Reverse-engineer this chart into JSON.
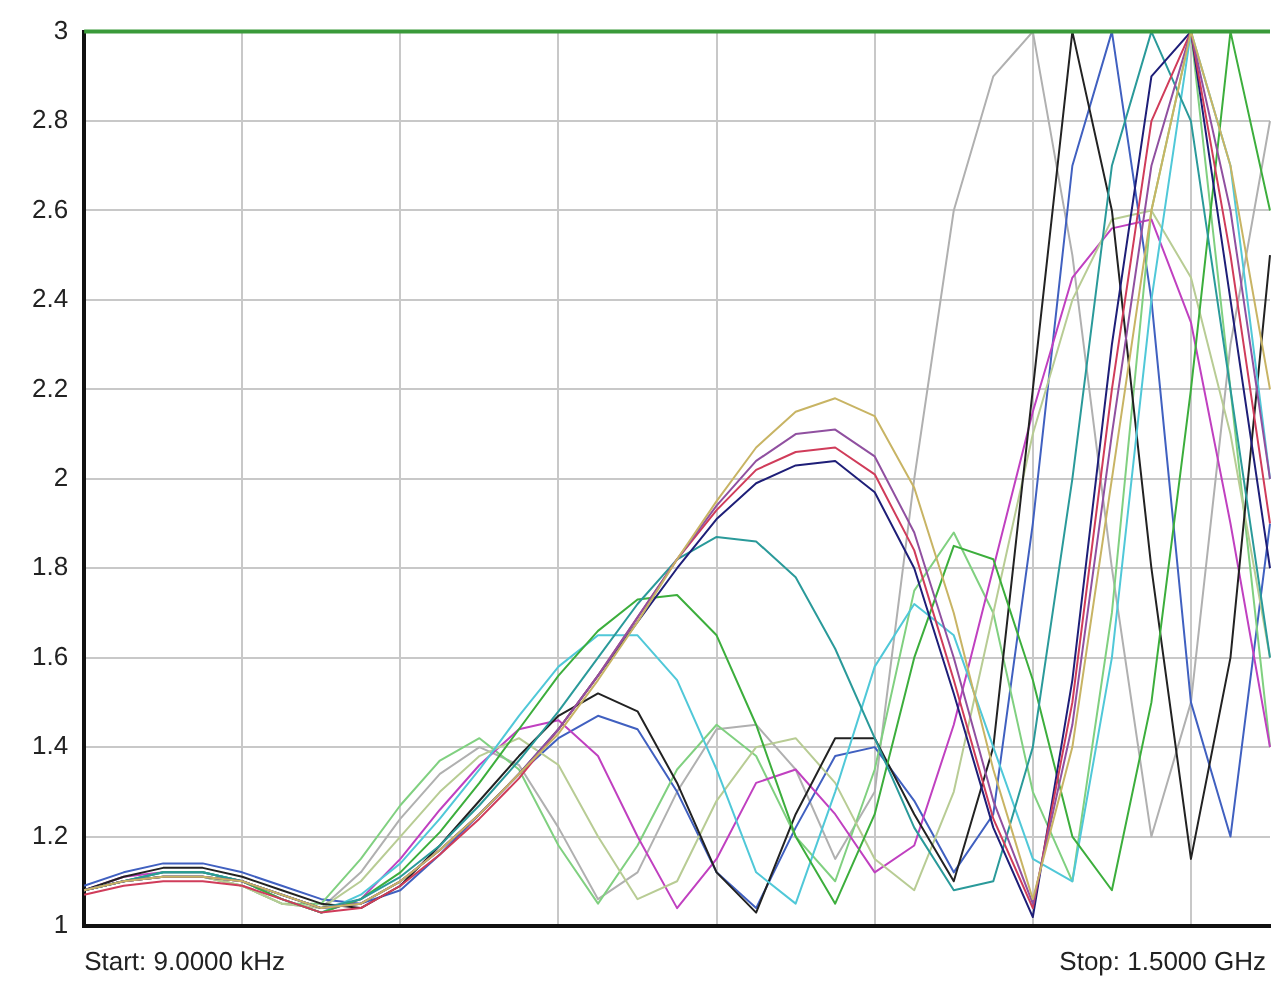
{
  "chart_data": {
    "type": "line",
    "categories": [
      null,
      null,
      null,
      null,
      null,
      null,
      null,
      null,
      null,
      null,
      null,
      null,
      null,
      null,
      null,
      null,
      null,
      null,
      null,
      null,
      null,
      null,
      null,
      null,
      null,
      null,
      null,
      null,
      null,
      null,
      null
    ],
    "ylim": [
      1,
      3
    ],
    "yticks": [
      1,
      1.2,
      1.4,
      1.6,
      1.8,
      2,
      2.2,
      2.4,
      2.6,
      2.8,
      3
    ],
    "grid": true,
    "legend": false,
    "tick_labels": "y",
    "marker": "none",
    "ref_lines": [
      {
        "axis": "y",
        "value": 3,
        "color": "#3a9a3a"
      }
    ],
    "annotations": [
      "Start: 9.0000 kHz",
      "Stop: 1.5000 GHz"
    ],
    "series": [
      {
        "color": "#c8b464",
        "values": [
          1.08,
          1.1,
          1.11,
          1.11,
          1.1,
          1.07,
          1.04,
          1.05,
          1.1,
          1.17,
          1.25,
          1.34,
          1.43,
          1.55,
          1.68,
          1.82,
          1.95,
          2.07,
          2.15,
          2.18,
          2.14,
          1.98,
          1.7,
          1.35,
          1.06,
          1.4,
          2.0,
          2.6,
          3.0,
          2.7,
          2.2
        ]
      },
      {
        "color": "#9050a0",
        "values": [
          1.08,
          1.1,
          1.11,
          1.11,
          1.1,
          1.07,
          1.04,
          1.05,
          1.1,
          1.17,
          1.25,
          1.34,
          1.44,
          1.56,
          1.69,
          1.82,
          1.94,
          2.04,
          2.1,
          2.11,
          2.05,
          1.88,
          1.6,
          1.28,
          1.05,
          1.45,
          2.1,
          2.7,
          3.0,
          2.6,
          2.0
        ]
      },
      {
        "color": "#d03c5a",
        "values": [
          1.07,
          1.09,
          1.1,
          1.1,
          1.09,
          1.06,
          1.03,
          1.04,
          1.09,
          1.16,
          1.24,
          1.33,
          1.44,
          1.56,
          1.69,
          1.82,
          1.93,
          2.02,
          2.06,
          2.07,
          2.01,
          1.84,
          1.55,
          1.24,
          1.04,
          1.5,
          2.2,
          2.8,
          3.0,
          2.5,
          1.9
        ]
      },
      {
        "color": "#1e1e78",
        "values": [
          1.08,
          1.1,
          1.11,
          1.11,
          1.1,
          1.07,
          1.04,
          1.05,
          1.1,
          1.17,
          1.25,
          1.34,
          1.44,
          1.56,
          1.68,
          1.8,
          1.91,
          1.99,
          2.03,
          2.04,
          1.97,
          1.8,
          1.52,
          1.22,
          1.02,
          1.55,
          2.3,
          2.9,
          3.0,
          2.4,
          1.8
        ]
      },
      {
        "color": "#2a9a9a",
        "values": [
          1.08,
          1.1,
          1.12,
          1.12,
          1.1,
          1.07,
          1.04,
          1.06,
          1.11,
          1.18,
          1.27,
          1.37,
          1.48,
          1.6,
          1.72,
          1.82,
          1.87,
          1.86,
          1.78,
          1.62,
          1.42,
          1.22,
          1.08,
          1.1,
          1.4,
          2.0,
          2.7,
          3.0,
          2.8,
          2.2,
          1.6
        ]
      },
      {
        "color": "#3cae3c",
        "values": [
          1.08,
          1.1,
          1.12,
          1.12,
          1.1,
          1.06,
          1.03,
          1.06,
          1.12,
          1.21,
          1.32,
          1.44,
          1.56,
          1.66,
          1.73,
          1.74,
          1.65,
          1.45,
          1.2,
          1.05,
          1.25,
          1.6,
          1.85,
          1.82,
          1.55,
          1.2,
          1.08,
          1.5,
          2.2,
          3.0,
          2.6
        ]
      },
      {
        "color": "#50c8d8",
        "values": [
          1.08,
          1.1,
          1.12,
          1.12,
          1.1,
          1.06,
          1.03,
          1.07,
          1.14,
          1.24,
          1.35,
          1.47,
          1.58,
          1.65,
          1.65,
          1.55,
          1.35,
          1.12,
          1.05,
          1.3,
          1.58,
          1.72,
          1.65,
          1.4,
          1.15,
          1.1,
          1.6,
          2.4,
          3.0,
          2.7,
          2.0
        ]
      },
      {
        "color": "#222222",
        "values": [
          1.08,
          1.11,
          1.13,
          1.13,
          1.11,
          1.08,
          1.05,
          1.04,
          1.09,
          1.18,
          1.28,
          1.38,
          1.47,
          1.52,
          1.48,
          1.32,
          1.12,
          1.03,
          1.25,
          1.42,
          1.42,
          1.25,
          1.1,
          1.4,
          2.2,
          3.0,
          2.6,
          1.8,
          1.15,
          1.6,
          2.5
        ]
      },
      {
        "color": "#b8cc94",
        "values": [
          1.08,
          1.1,
          1.11,
          1.11,
          1.09,
          1.05,
          1.04,
          1.1,
          1.2,
          1.3,
          1.38,
          1.42,
          1.36,
          1.2,
          1.06,
          1.1,
          1.28,
          1.4,
          1.42,
          1.32,
          1.15,
          1.08,
          1.3,
          1.7,
          2.1,
          2.4,
          2.58,
          2.6,
          2.45,
          2.1,
          1.6
        ]
      },
      {
        "color": "#c040c0",
        "values": [
          1.08,
          1.11,
          1.12,
          1.12,
          1.1,
          1.06,
          1.03,
          1.06,
          1.15,
          1.26,
          1.36,
          1.44,
          1.46,
          1.38,
          1.2,
          1.04,
          1.15,
          1.32,
          1.35,
          1.25,
          1.12,
          1.18,
          1.45,
          1.8,
          2.15,
          2.45,
          2.56,
          2.58,
          2.35,
          1.9,
          1.4
        ]
      },
      {
        "color": "#80d080",
        "values": [
          1.08,
          1.1,
          1.11,
          1.11,
          1.09,
          1.05,
          1.05,
          1.15,
          1.27,
          1.37,
          1.42,
          1.35,
          1.18,
          1.05,
          1.18,
          1.35,
          1.45,
          1.38,
          1.2,
          1.1,
          1.35,
          1.75,
          1.88,
          1.7,
          1.3,
          1.1,
          1.7,
          2.6,
          3.0,
          2.2,
          1.4
        ]
      },
      {
        "color": "#4060c0",
        "values": [
          1.09,
          1.12,
          1.14,
          1.14,
          1.12,
          1.09,
          1.06,
          1.05,
          1.08,
          1.16,
          1.25,
          1.34,
          1.42,
          1.47,
          1.44,
          1.3,
          1.12,
          1.04,
          1.22,
          1.38,
          1.4,
          1.28,
          1.12,
          1.25,
          1.9,
          2.7,
          3.0,
          2.4,
          1.5,
          1.2,
          1.9
        ]
      },
      {
        "color": "#b0b0b0",
        "values": [
          1.08,
          1.1,
          1.11,
          1.11,
          1.09,
          1.05,
          1.04,
          1.12,
          1.24,
          1.34,
          1.4,
          1.36,
          1.22,
          1.06,
          1.12,
          1.3,
          1.44,
          1.45,
          1.35,
          1.15,
          1.3,
          2.0,
          2.6,
          2.9,
          3.0,
          2.5,
          1.8,
          1.2,
          1.5,
          2.3,
          2.8
        ]
      }
    ]
  }
}
